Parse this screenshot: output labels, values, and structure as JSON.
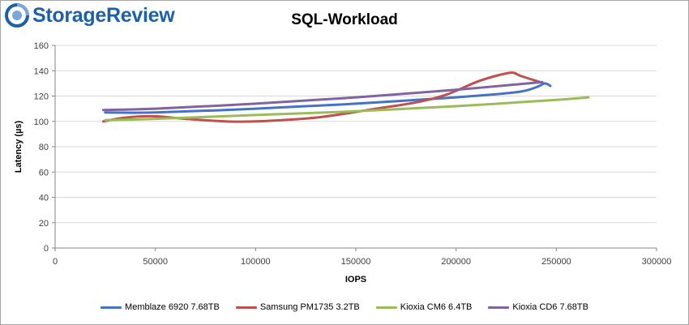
{
  "logo": {
    "text": "StorageReview"
  },
  "chart_data": {
    "type": "line",
    "title": "SQL-Workload",
    "xlabel": "IOPS",
    "ylabel": "Latency (µs)",
    "xlim": [
      0,
      300000
    ],
    "ylim": [
      0,
      160
    ],
    "xticks": [
      "0",
      "50000",
      "100000",
      "150000",
      "200000",
      "250000",
      "300000"
    ],
    "yticks": [
      "0",
      "20",
      "40",
      "60",
      "80",
      "100",
      "120",
      "140",
      "160"
    ],
    "grid": "horizontal",
    "legend": "bottom",
    "series": [
      {
        "name": "Memblaze 6920 7.68TB",
        "color": "#4472c4",
        "x": [
          25000,
          50000,
          100000,
          150000,
          200000,
          230000,
          240000,
          244000,
          246000,
          247000
        ],
        "y": [
          107,
          107,
          110,
          114,
          119,
          123,
          127,
          130,
          129,
          128
        ]
      },
      {
        "name": "Samsung PM1735 3.2TB",
        "color": "#c0504d",
        "x": [
          24000,
          35000,
          50000,
          65000,
          85000,
          100000,
          130000,
          160000,
          180000,
          195000,
          210000,
          220000,
          228000,
          232000,
          242000
        ],
        "y": [
          100,
          103,
          104,
          102,
          100,
          100,
          103,
          110,
          115,
          121,
          131,
          136,
          138.5,
          136,
          131
        ]
      },
      {
        "name": "Kioxia CM6 6.4TB",
        "color": "#9bbb59",
        "x": [
          25000,
          50000,
          100000,
          150000,
          200000,
          250000,
          266000
        ],
        "y": [
          101,
          102,
          105,
          108,
          112,
          117,
          119
        ]
      },
      {
        "name": "Kioxia CD6 7.68TB",
        "color": "#8064a2",
        "x": [
          24000,
          50000,
          100000,
          150000,
          200000,
          243000
        ],
        "y": [
          109,
          110,
          114,
          119,
          125,
          131
        ]
      }
    ]
  }
}
